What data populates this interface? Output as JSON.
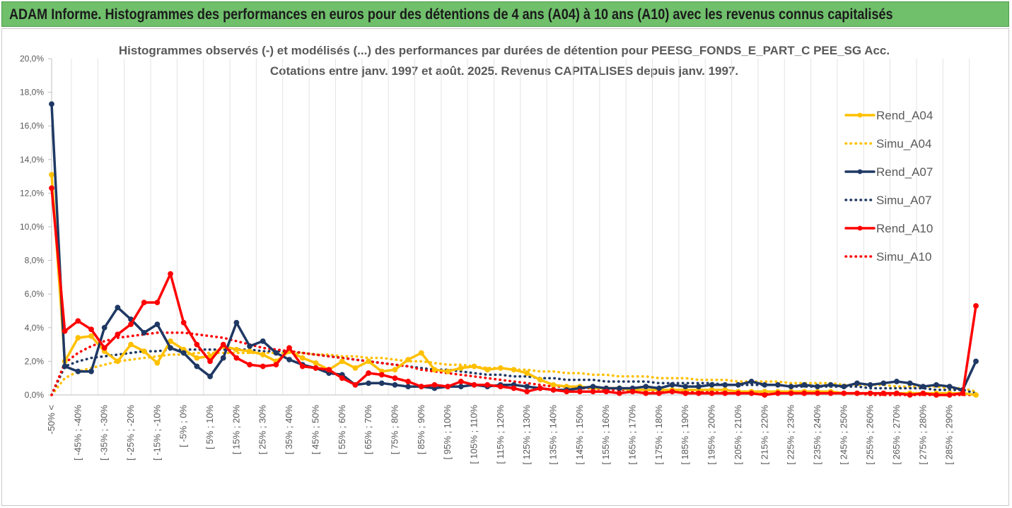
{
  "banner": {
    "text": "ADAM Informe. Histogrammes des performances en euros pour des détentions de 4 ans (A04) à 10 ans (A10) avec les revenus connus capitalisés"
  },
  "chart_data": {
    "type": "line",
    "title_line1": "Histogrammes observés (-) et modélisés (...) des performances par durées de détention pour PEESG_FONDS_E_PART_C PEE_SG Acc.",
    "title_line2": "Cotations entre janv. 1997 et août. 2025. Revenus CAPITALISES depuis janv. 1997.",
    "ylim": [
      0,
      20
    ],
    "y_ticks": [
      "0,0%",
      "2,0%",
      "4,0%",
      "6,0%",
      "8,0%",
      "10,0%",
      "12,0%",
      "14,0%",
      "16,0%",
      "18,0%",
      "20,0%"
    ],
    "grid": "vertical",
    "legend_position": "right",
    "x_labels": [
      "-50% <",
      "[ -45% ; -40%",
      "[ -35% ; -30%",
      "[ -25% ; -20%",
      "[ -15% ; -10%",
      "[ -5% ; 0%",
      "[ 5% ; 10%",
      "[ 15% ; 20%",
      "[ 25% ; 30%",
      "[ 35% ; 40%",
      "[ 45% ; 50%",
      "[ 55% ; 60%",
      "[ 65% ; 70%",
      "[ 75% ; 80%",
      "[ 85% ; 90%",
      "[ 95% ; 100%",
      "[ 105% ; 110%",
      "[ 115% ; 120%",
      "[ 125% ; 130%",
      "[ 135% ; 140%",
      "[ 145% ; 150%",
      "[ 155% ; 160%",
      "[ 165% ; 170%",
      "[ 175% ; 180%",
      "[ 185% ; 190%",
      "[ 195% ; 200%",
      "[ 205% ; 210%",
      "[ 215% ; 220%",
      "[ 225% ; 230%",
      "[ 235% ; 240%",
      "[ 245% ; 250%",
      "[ 255% ; 260%",
      "[ 265% ; 270%",
      "[ 275% ; 280%",
      "[ 285% ; 290%"
    ],
    "series": [
      {
        "name": "Rend_A04",
        "color": "#ffc000",
        "style": "solid",
        "markers": true,
        "values": [
          13.1,
          2.0,
          3.4,
          3.5,
          2.6,
          2.0,
          3.0,
          2.6,
          1.9,
          3.2,
          2.7,
          2.2,
          2.3,
          2.9,
          2.7,
          2.6,
          2.4,
          2.0,
          2.6,
          2.2,
          1.9,
          1.5,
          2.0,
          1.6,
          2.0,
          1.4,
          1.5,
          2.1,
          2.5,
          1.5,
          1.4,
          1.6,
          1.7,
          1.5,
          1.6,
          1.5,
          1.3,
          0.9,
          0.6,
          0.5,
          0.5,
          0.4,
          0.4,
          0.4,
          0.3,
          0.3,
          0.3,
          0.3,
          0.3,
          0.3,
          0.3,
          0.3,
          0.2,
          0.2,
          0.2,
          0.2,
          0.2,
          0.2,
          0.2,
          0.2,
          0.1,
          0.1,
          0.1,
          0.1,
          0.1,
          0.1,
          0.1,
          0.1,
          0.1,
          0.1,
          0.0
        ]
      },
      {
        "name": "Simu_A04",
        "color": "#ffc000",
        "style": "dotted",
        "markers": false,
        "values": [
          0.0,
          1.0,
          1.4,
          1.6,
          1.8,
          2.0,
          2.1,
          2.2,
          2.3,
          2.4,
          2.4,
          2.5,
          2.5,
          2.5,
          2.5,
          2.5,
          2.5,
          2.5,
          2.5,
          2.5,
          2.4,
          2.4,
          2.3,
          2.3,
          2.2,
          2.2,
          2.1,
          2.0,
          2.0,
          1.9,
          1.8,
          1.8,
          1.7,
          1.6,
          1.6,
          1.5,
          1.5,
          1.4,
          1.4,
          1.3,
          1.3,
          1.2,
          1.2,
          1.1,
          1.1,
          1.1,
          1.0,
          1.0,
          1.0,
          0.9,
          0.9,
          0.9,
          0.8,
          0.8,
          0.8,
          0.8,
          0.7,
          0.7,
          0.7,
          0.7,
          0.6,
          0.6,
          0.6,
          0.6,
          0.5,
          0.5,
          0.5,
          0.5,
          0.4,
          0.4,
          0.2
        ]
      },
      {
        "name": "Rend_A07",
        "color": "#1f3864",
        "style": "solid",
        "markers": true,
        "values": [
          17.3,
          1.7,
          1.4,
          1.4,
          4.0,
          5.2,
          4.5,
          3.7,
          4.2,
          2.8,
          2.5,
          1.7,
          1.1,
          2.2,
          4.3,
          2.9,
          3.2,
          2.5,
          2.1,
          1.8,
          1.6,
          1.3,
          1.2,
          0.6,
          0.7,
          0.7,
          0.6,
          0.5,
          0.5,
          0.4,
          0.5,
          0.5,
          0.6,
          0.5,
          0.6,
          0.6,
          0.5,
          0.4,
          0.3,
          0.3,
          0.4,
          0.5,
          0.4,
          0.4,
          0.4,
          0.5,
          0.4,
          0.6,
          0.5,
          0.5,
          0.6,
          0.6,
          0.6,
          0.8,
          0.6,
          0.6,
          0.5,
          0.6,
          0.5,
          0.6,
          0.5,
          0.7,
          0.6,
          0.7,
          0.8,
          0.7,
          0.5,
          0.6,
          0.5,
          0.3,
          2.0
        ]
      },
      {
        "name": "Simu_A07",
        "color": "#1f3864",
        "style": "dotted",
        "markers": false,
        "values": [
          0.0,
          1.7,
          2.0,
          2.2,
          2.3,
          2.4,
          2.5,
          2.6,
          2.6,
          2.7,
          2.7,
          2.7,
          2.7,
          2.7,
          2.7,
          2.7,
          2.6,
          2.6,
          2.6,
          2.5,
          2.4,
          2.3,
          2.2,
          2.1,
          2.0,
          1.9,
          1.8,
          1.7,
          1.6,
          1.5,
          1.5,
          1.4,
          1.3,
          1.2,
          1.2,
          1.1,
          1.1,
          1.0,
          1.0,
          0.9,
          0.9,
          0.9,
          0.8,
          0.8,
          0.8,
          0.8,
          0.7,
          0.7,
          0.7,
          0.7,
          0.7,
          0.6,
          0.6,
          0.6,
          0.6,
          0.6,
          0.5,
          0.5,
          0.5,
          0.5,
          0.5,
          0.5,
          0.4,
          0.4,
          0.4,
          0.4,
          0.4,
          0.3,
          0.3,
          0.3,
          0.1
        ]
      },
      {
        "name": "Rend_A10",
        "color": "#ff0000",
        "style": "solid",
        "markers": true,
        "values": [
          12.3,
          3.8,
          4.4,
          3.9,
          2.8,
          3.6,
          4.2,
          5.5,
          5.5,
          7.2,
          4.3,
          3.0,
          2.0,
          3.0,
          2.2,
          1.8,
          1.7,
          1.8,
          2.8,
          1.7,
          1.6,
          1.5,
          1.0,
          0.6,
          1.3,
          1.2,
          1.0,
          0.8,
          0.5,
          0.6,
          0.5,
          0.8,
          0.6,
          0.6,
          0.5,
          0.4,
          0.2,
          0.4,
          0.3,
          0.2,
          0.2,
          0.2,
          0.2,
          0.1,
          0.2,
          0.1,
          0.1,
          0.2,
          0.1,
          0.1,
          0.1,
          0.1,
          0.1,
          0.1,
          0.0,
          0.1,
          0.1,
          0.1,
          0.1,
          0.1,
          0.1,
          0.1,
          0.1,
          0.1,
          0.1,
          0.0,
          0.1,
          0.0,
          0.0,
          0.1,
          5.3
        ]
      },
      {
        "name": "Simu_A10",
        "color": "#ff0000",
        "style": "dotted",
        "markers": false,
        "values": [
          0.0,
          1.9,
          2.5,
          2.9,
          3.2,
          3.4,
          3.5,
          3.6,
          3.7,
          3.7,
          3.7,
          3.6,
          3.5,
          3.4,
          3.2,
          3.0,
          2.8,
          2.7,
          2.6,
          2.5,
          2.4,
          2.3,
          2.2,
          2.1,
          2.0,
          1.9,
          1.8,
          1.7,
          1.5,
          1.4,
          1.3,
          1.2,
          1.1,
          1.0,
          0.9,
          0.8,
          0.7,
          0.6,
          0.5,
          0.5,
          0.4,
          0.4,
          0.3,
          0.3,
          0.3,
          0.3,
          0.2,
          0.2,
          0.2,
          0.2,
          0.2,
          0.1,
          0.1,
          0.1,
          0.1,
          0.1,
          0.1,
          0.1,
          0.1,
          0.1,
          0.1,
          0.1,
          0.0,
          0.0,
          0.0,
          0.0,
          0.0,
          0.0,
          0.0,
          0.0,
          0.0
        ]
      }
    ]
  }
}
